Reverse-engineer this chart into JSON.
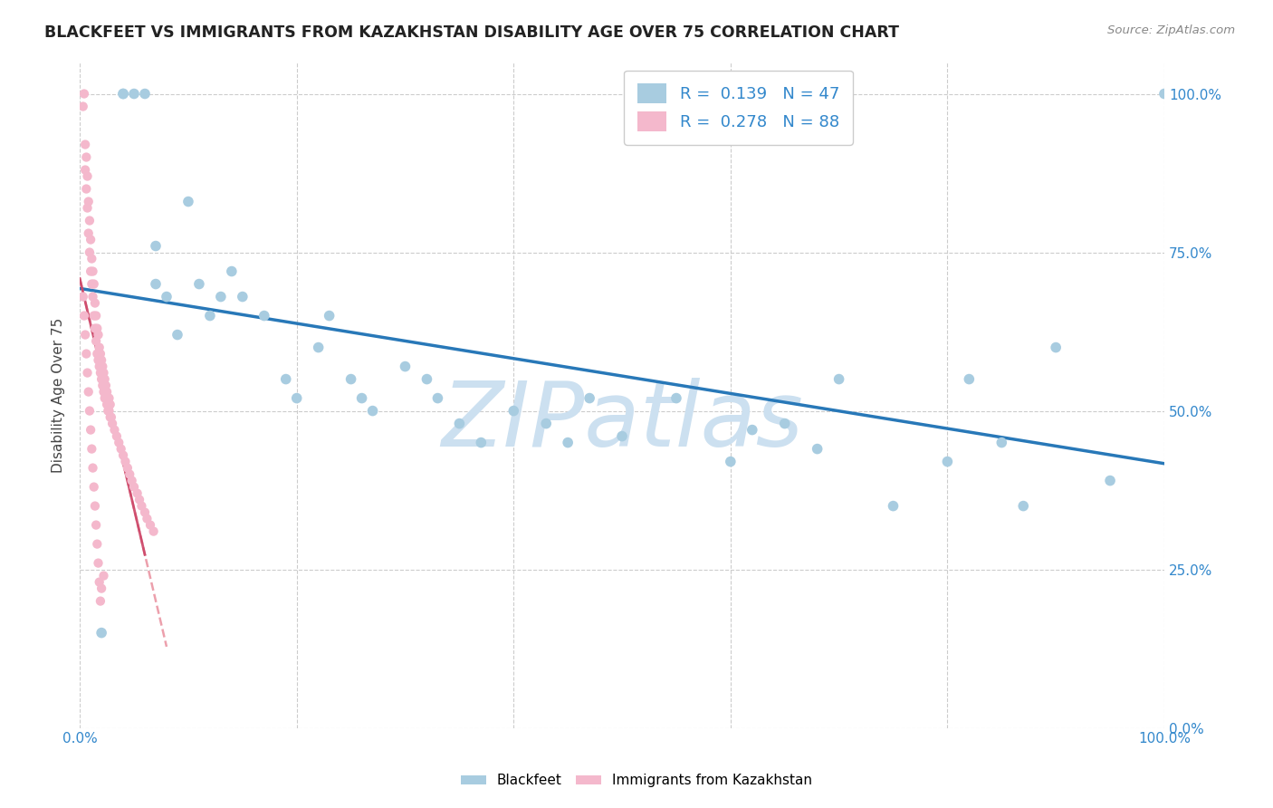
{
  "title": "BLACKFEET VS IMMIGRANTS FROM KAZAKHSTAN DISABILITY AGE OVER 75 CORRELATION CHART",
  "source": "Source: ZipAtlas.com",
  "ylabel": "Disability Age Over 75",
  "watermark": "ZIPatlas",
  "blue_R": 0.139,
  "blue_N": 47,
  "pink_R": 0.278,
  "pink_N": 88,
  "blue_color": "#a8cce0",
  "pink_color": "#f4b8cc",
  "trend_blue": "#2878b8",
  "trend_pink_color": "#e88898",
  "blue_x": [
    0.02,
    0.04,
    0.04,
    0.05,
    0.06,
    0.07,
    0.07,
    0.08,
    0.09,
    0.1,
    0.11,
    0.12,
    0.13,
    0.14,
    0.15,
    0.17,
    0.19,
    0.2,
    0.22,
    0.23,
    0.25,
    0.26,
    0.27,
    0.3,
    0.32,
    0.33,
    0.35,
    0.37,
    0.4,
    0.43,
    0.45,
    0.47,
    0.5,
    0.55,
    0.6,
    0.62,
    0.65,
    0.68,
    0.7,
    0.75,
    0.8,
    0.82,
    0.85,
    0.87,
    0.9,
    0.95,
    1.0
  ],
  "blue_y": [
    0.15,
    1.0,
    1.0,
    1.0,
    1.0,
    0.76,
    0.7,
    0.68,
    0.62,
    0.83,
    0.7,
    0.65,
    0.68,
    0.72,
    0.68,
    0.65,
    0.55,
    0.52,
    0.6,
    0.65,
    0.55,
    0.52,
    0.5,
    0.57,
    0.55,
    0.52,
    0.48,
    0.45,
    0.5,
    0.48,
    0.45,
    0.52,
    0.46,
    0.52,
    0.42,
    0.47,
    0.48,
    0.44,
    0.55,
    0.35,
    0.42,
    0.55,
    0.45,
    0.35,
    0.6,
    0.39,
    1.0
  ],
  "pink_x": [
    0.003,
    0.004,
    0.005,
    0.005,
    0.006,
    0.006,
    0.007,
    0.007,
    0.008,
    0.008,
    0.009,
    0.009,
    0.01,
    0.01,
    0.011,
    0.011,
    0.012,
    0.012,
    0.013,
    0.013,
    0.014,
    0.014,
    0.015,
    0.015,
    0.016,
    0.016,
    0.017,
    0.017,
    0.018,
    0.018,
    0.019,
    0.019,
    0.02,
    0.02,
    0.021,
    0.021,
    0.022,
    0.022,
    0.023,
    0.023,
    0.024,
    0.024,
    0.025,
    0.025,
    0.026,
    0.026,
    0.027,
    0.027,
    0.028,
    0.028,
    0.029,
    0.03,
    0.032,
    0.034,
    0.036,
    0.038,
    0.04,
    0.042,
    0.044,
    0.046,
    0.048,
    0.05,
    0.053,
    0.055,
    0.057,
    0.06,
    0.062,
    0.065,
    0.068,
    0.003,
    0.004,
    0.005,
    0.006,
    0.007,
    0.008,
    0.009,
    0.01,
    0.011,
    0.012,
    0.013,
    0.014,
    0.015,
    0.016,
    0.017,
    0.018,
    0.019,
    0.02,
    0.022
  ],
  "pink_y": [
    0.98,
    1.0,
    0.88,
    0.92,
    0.85,
    0.9,
    0.82,
    0.87,
    0.78,
    0.83,
    0.75,
    0.8,
    0.72,
    0.77,
    0.7,
    0.74,
    0.68,
    0.72,
    0.65,
    0.7,
    0.63,
    0.67,
    0.61,
    0.65,
    0.59,
    0.63,
    0.58,
    0.62,
    0.57,
    0.6,
    0.56,
    0.59,
    0.55,
    0.58,
    0.54,
    0.57,
    0.53,
    0.56,
    0.52,
    0.55,
    0.52,
    0.54,
    0.51,
    0.53,
    0.5,
    0.52,
    0.5,
    0.52,
    0.49,
    0.51,
    0.49,
    0.48,
    0.47,
    0.46,
    0.45,
    0.44,
    0.43,
    0.42,
    0.41,
    0.4,
    0.39,
    0.38,
    0.37,
    0.36,
    0.35,
    0.34,
    0.33,
    0.32,
    0.31,
    0.68,
    0.65,
    0.62,
    0.59,
    0.56,
    0.53,
    0.5,
    0.47,
    0.44,
    0.41,
    0.38,
    0.35,
    0.32,
    0.29,
    0.26,
    0.23,
    0.2,
    0.22,
    0.24
  ],
  "xlim": [
    0.0,
    1.0
  ],
  "ylim": [
    0.0,
    1.05
  ],
  "yticks": [
    0.0,
    0.25,
    0.5,
    0.75,
    1.0
  ],
  "ytick_labels_right": [
    "0.0%",
    "25.0%",
    "50.0%",
    "75.0%",
    "100.0%"
  ],
  "xtick_positions": [
    0.0,
    0.2,
    0.4,
    0.6,
    0.8,
    1.0
  ],
  "grid_color": "#cccccc",
  "bg_color": "#ffffff",
  "watermark_color": "#cce0f0",
  "watermark_fontsize": 72
}
